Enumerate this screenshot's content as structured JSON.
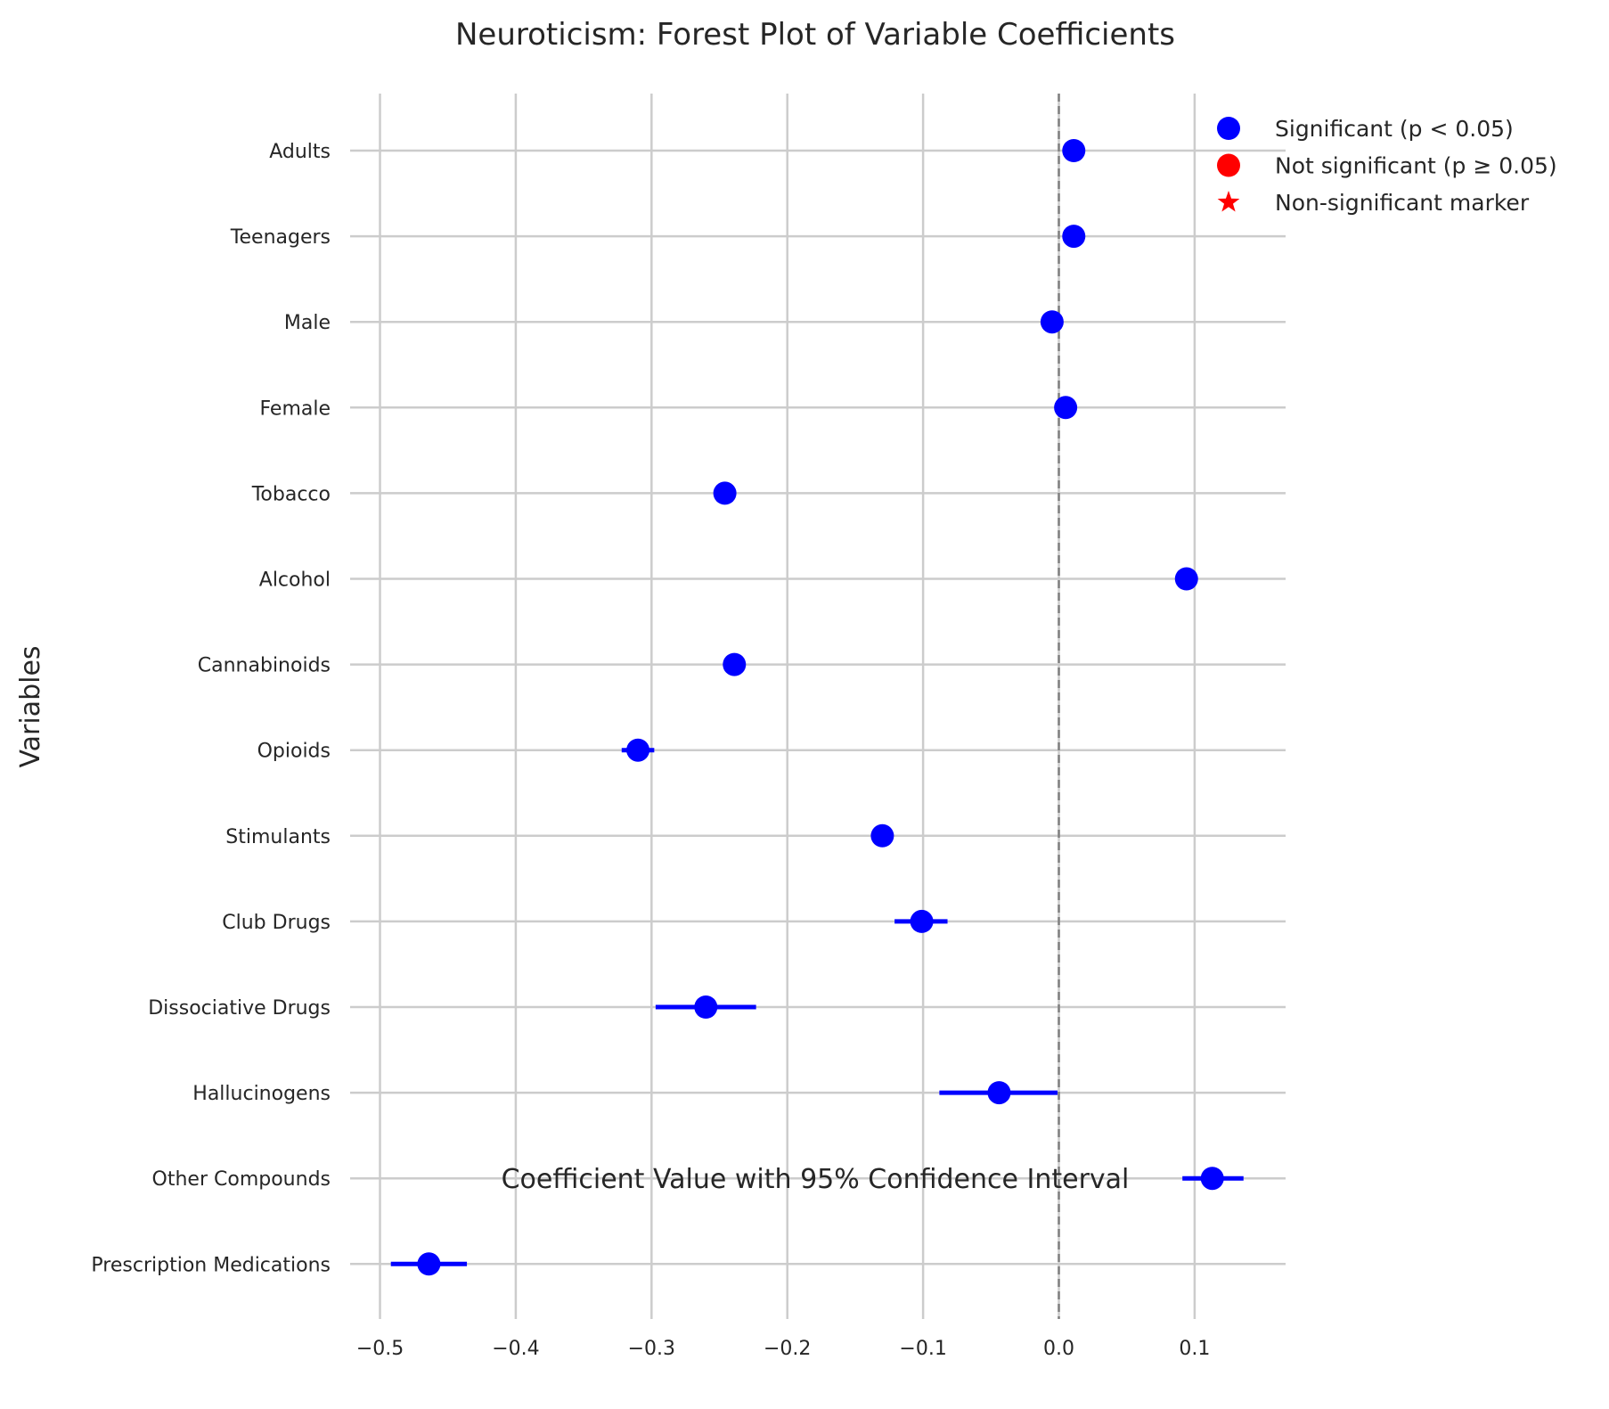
{
  "chart_data": {
    "type": "scatter",
    "title": "Neuroticism: Forest Plot of Variable Coefficients",
    "xlabel": "Coefficient Value with 95% Confidence Interval",
    "ylabel": "Variables",
    "xlim": [
      -0.522,
      0.167
    ],
    "x_ticks": [
      -0.5,
      -0.4,
      -0.3,
      -0.2,
      -0.1,
      0.0,
      0.1
    ],
    "x_tick_labels": [
      "−0.5",
      "−0.4",
      "−0.3",
      "−0.2",
      "−0.1",
      "0.0",
      "0.1"
    ],
    "reference_line": 0.0,
    "grid": true,
    "legend_position": "top-right",
    "legend": [
      {
        "label": "Significant (p < 0.05)",
        "marker": "circle",
        "color": "#0000ff"
      },
      {
        "label": "Not significant (p ≥ 0.05)",
        "marker": "circle",
        "color": "#ff0000"
      },
      {
        "label": "Non-significant marker",
        "marker": "star",
        "color": "#ff0000"
      }
    ],
    "points": [
      {
        "variable": "Adults",
        "estimate": 0.011,
        "ci_low": 0.008,
        "ci_high": 0.014,
        "significant": true
      },
      {
        "variable": "Teenagers",
        "estimate": 0.011,
        "ci_low": 0.008,
        "ci_high": 0.014,
        "significant": true
      },
      {
        "variable": "Male",
        "estimate": -0.005,
        "ci_low": -0.008,
        "ci_high": -0.002,
        "significant": true
      },
      {
        "variable": "Female",
        "estimate": 0.005,
        "ci_low": 0.002,
        "ci_high": 0.008,
        "significant": true
      },
      {
        "variable": "Tobacco",
        "estimate": -0.246,
        "ci_low": -0.249,
        "ci_high": -0.243,
        "significant": true
      },
      {
        "variable": "Alcohol",
        "estimate": 0.094,
        "ci_low": 0.091,
        "ci_high": 0.097,
        "significant": true
      },
      {
        "variable": "Cannabinoids",
        "estimate": -0.239,
        "ci_low": -0.242,
        "ci_high": -0.236,
        "significant": true
      },
      {
        "variable": "Opioids",
        "estimate": -0.31,
        "ci_low": -0.322,
        "ci_high": -0.298,
        "significant": true
      },
      {
        "variable": "Stimulants",
        "estimate": -0.13,
        "ci_low": -0.133,
        "ci_high": -0.127,
        "significant": true
      },
      {
        "variable": "Club Drugs",
        "estimate": -0.101,
        "ci_low": -0.121,
        "ci_high": -0.082,
        "significant": true
      },
      {
        "variable": "Dissociative Drugs",
        "estimate": -0.26,
        "ci_low": -0.297,
        "ci_high": -0.223,
        "significant": true
      },
      {
        "variable": "Hallucinogens",
        "estimate": -0.044,
        "ci_low": -0.088,
        "ci_high": -0.001,
        "significant": true
      },
      {
        "variable": "Other Compounds",
        "estimate": 0.113,
        "ci_low": 0.091,
        "ci_high": 0.136,
        "significant": true
      },
      {
        "variable": "Prescription Medications",
        "estimate": -0.464,
        "ci_low": -0.492,
        "ci_high": -0.436,
        "significant": true
      }
    ]
  }
}
